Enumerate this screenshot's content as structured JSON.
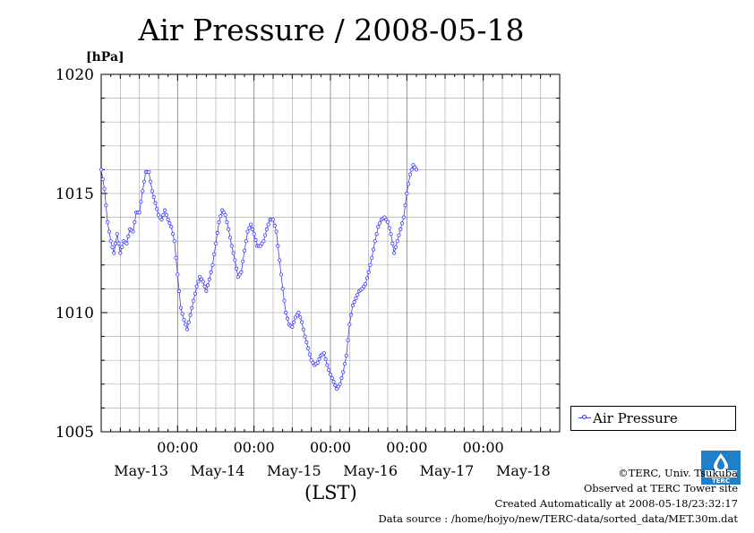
{
  "header": {
    "title": "Air Pressure / 2008-05-18",
    "unit": "[hPa]"
  },
  "colors": {
    "series": "#3b3bff",
    "grid": "#b0b0b0",
    "logo": "#1f7fc8"
  },
  "legend": {
    "label": "Air Pressure",
    "placement": "right"
  },
  "footer": {
    "credit": "©TERC, Univ. Tsukuba",
    "site": "Observed at TERC Tower site",
    "created": "Created Automatically at 2008-05-18/23:32:17",
    "source": "Data source : /home/hojyo/new/TERC-data/sorted_data/MET.30m.dat",
    "logo_text": "TERC"
  },
  "chart_data": {
    "type": "line",
    "title": "Air Pressure / 2008-05-18",
    "ylabel": "[hPa]",
    "xlabel": "(LST)",
    "ylim": [
      1005,
      1020
    ],
    "xlim_days": [
      0,
      6
    ],
    "yticks": [
      {
        "value": 1005,
        "label": "1005"
      },
      {
        "value": 1010,
        "label": "1010"
      },
      {
        "value": 1015,
        "label": "1015"
      },
      {
        "value": 1020,
        "label": "1020"
      }
    ],
    "xticks": [
      {
        "time": "00:00",
        "date": "May-14"
      },
      {
        "time": "00:00",
        "date": "May-15"
      },
      {
        "time": "00:00",
        "date": "May-16"
      },
      {
        "time": "00:00",
        "date": "May-17"
      },
      {
        "time": "00:00",
        "date": "May-18"
      }
    ],
    "date_labels": [
      "May-13",
      "May-14",
      "May-15",
      "May-16",
      "May-17",
      "May-18"
    ],
    "grid": true,
    "series": [
      {
        "name": "Air Pressure",
        "points": [
          [
            "2008-05-13 00:00",
            1016.0
          ],
          [
            "2008-05-13 01:00",
            1015.2
          ],
          [
            "2008-05-13 02:00",
            1013.8
          ],
          [
            "2008-05-13 03:00",
            1013.0
          ],
          [
            "2008-05-13 04:00",
            1012.5
          ],
          [
            "2008-05-13 05:00",
            1013.3
          ],
          [
            "2008-05-13 06:00",
            1012.5
          ],
          [
            "2008-05-13 07:00",
            1013.0
          ],
          [
            "2008-05-13 08:00",
            1012.9
          ],
          [
            "2008-05-13 09:00",
            1013.5
          ],
          [
            "2008-05-13 10:00",
            1013.4
          ],
          [
            "2008-05-13 11:00",
            1014.2
          ],
          [
            "2008-05-13 12:00",
            1014.2
          ],
          [
            "2008-05-13 13:00",
            1015.1
          ],
          [
            "2008-05-13 14:00",
            1015.9
          ],
          [
            "2008-05-13 15:00",
            1015.9
          ],
          [
            "2008-05-13 16:00",
            1015.1
          ],
          [
            "2008-05-13 17:00",
            1014.6
          ],
          [
            "2008-05-13 18:00",
            1014.1
          ],
          [
            "2008-05-13 19:00",
            1013.9
          ],
          [
            "2008-05-13 20:00",
            1014.3
          ],
          [
            "2008-05-13 21:00",
            1013.9
          ],
          [
            "2008-05-13 22:00",
            1013.6
          ],
          [
            "2008-05-13 23:00",
            1013.0
          ],
          [
            "2008-05-14 00:00",
            1011.6
          ],
          [
            "2008-05-14 01:00",
            1010.2
          ],
          [
            "2008-05-14 02:00",
            1009.7
          ],
          [
            "2008-05-14 03:00",
            1009.3
          ],
          [
            "2008-05-14 04:00",
            1009.9
          ],
          [
            "2008-05-14 05:00",
            1010.5
          ],
          [
            "2008-05-14 06:00",
            1011.1
          ],
          [
            "2008-05-14 07:00",
            1011.5
          ],
          [
            "2008-05-14 08:00",
            1011.3
          ],
          [
            "2008-05-14 09:00",
            1010.9
          ],
          [
            "2008-05-14 10:00",
            1011.4
          ],
          [
            "2008-05-14 11:00",
            1012.0
          ],
          [
            "2008-05-14 12:00",
            1012.9
          ],
          [
            "2008-05-14 13:00",
            1013.8
          ],
          [
            "2008-05-14 14:00",
            1014.3
          ],
          [
            "2008-05-14 15:00",
            1014.1
          ],
          [
            "2008-05-14 16:00",
            1013.5
          ],
          [
            "2008-05-14 17:00",
            1012.8
          ],
          [
            "2008-05-14 18:00",
            1012.2
          ],
          [
            "2008-05-14 19:00",
            1011.5
          ],
          [
            "2008-05-14 20:00",
            1011.7
          ],
          [
            "2008-05-14 21:00",
            1012.6
          ],
          [
            "2008-05-14 22:00",
            1013.4
          ],
          [
            "2008-05-14 23:00",
            1013.7
          ],
          [
            "2008-05-15 00:00",
            1013.3
          ],
          [
            "2008-05-15 01:00",
            1012.8
          ],
          [
            "2008-05-15 02:00",
            1012.8
          ],
          [
            "2008-05-15 03:00",
            1013.0
          ],
          [
            "2008-05-15 04:00",
            1013.5
          ],
          [
            "2008-05-15 05:00",
            1013.9
          ],
          [
            "2008-05-15 06:00",
            1013.9
          ],
          [
            "2008-05-15 07:00",
            1013.4
          ],
          [
            "2008-05-15 08:00",
            1012.2
          ],
          [
            "2008-05-15 09:00",
            1011.0
          ],
          [
            "2008-05-15 10:00",
            1010.0
          ],
          [
            "2008-05-15 11:00",
            1009.5
          ],
          [
            "2008-05-15 12:00",
            1009.4
          ],
          [
            "2008-05-15 13:00",
            1009.8
          ],
          [
            "2008-05-15 14:00",
            1010.0
          ],
          [
            "2008-05-15 15:00",
            1009.6
          ],
          [
            "2008-05-15 16:00",
            1009.0
          ],
          [
            "2008-05-15 17:00",
            1008.5
          ],
          [
            "2008-05-15 18:00",
            1008.0
          ],
          [
            "2008-05-15 19:00",
            1007.8
          ],
          [
            "2008-05-15 20:00",
            1007.9
          ],
          [
            "2008-05-15 21:00",
            1008.2
          ],
          [
            "2008-05-15 22:00",
            1008.3
          ],
          [
            "2008-05-15 23:00",
            1007.8
          ],
          [
            "2008-05-16 00:00",
            1007.4
          ],
          [
            "2008-05-16 01:00",
            1007.1
          ],
          [
            "2008-05-16 02:00",
            1006.8
          ],
          [
            "2008-05-16 03:00",
            1007.0
          ],
          [
            "2008-05-16 04:00",
            1007.5
          ],
          [
            "2008-05-16 05:00",
            1008.2
          ],
          [
            "2008-05-16 06:00",
            1009.5
          ],
          [
            "2008-05-16 07:00",
            1010.3
          ],
          [
            "2008-05-16 08:00",
            1010.6
          ],
          [
            "2008-05-16 09:00",
            1010.9
          ],
          [
            "2008-05-16 10:00",
            1011.0
          ],
          [
            "2008-05-16 11:00",
            1011.2
          ],
          [
            "2008-05-16 12:00",
            1011.7
          ],
          [
            "2008-05-16 13:00",
            1012.3
          ],
          [
            "2008-05-16 14:00",
            1013.0
          ],
          [
            "2008-05-16 15:00",
            1013.6
          ],
          [
            "2008-05-16 16:00",
            1013.9
          ],
          [
            "2008-05-16 17:00",
            1014.0
          ],
          [
            "2008-05-16 18:00",
            1013.8
          ],
          [
            "2008-05-16 19:00",
            1013.3
          ],
          [
            "2008-05-16 20:00",
            1012.5
          ],
          [
            "2008-05-16 21:00",
            1013.0
          ],
          [
            "2008-05-16 22:00",
            1013.5
          ],
          [
            "2008-05-16 23:00",
            1014.0
          ],
          [
            "2008-05-17 00:00",
            1015.0
          ],
          [
            "2008-05-17 01:00",
            1015.8
          ],
          [
            "2008-05-17 02:00",
            1016.2
          ],
          [
            "2008-05-17 03:00",
            1016.0
          ]
        ]
      }
    ]
  }
}
